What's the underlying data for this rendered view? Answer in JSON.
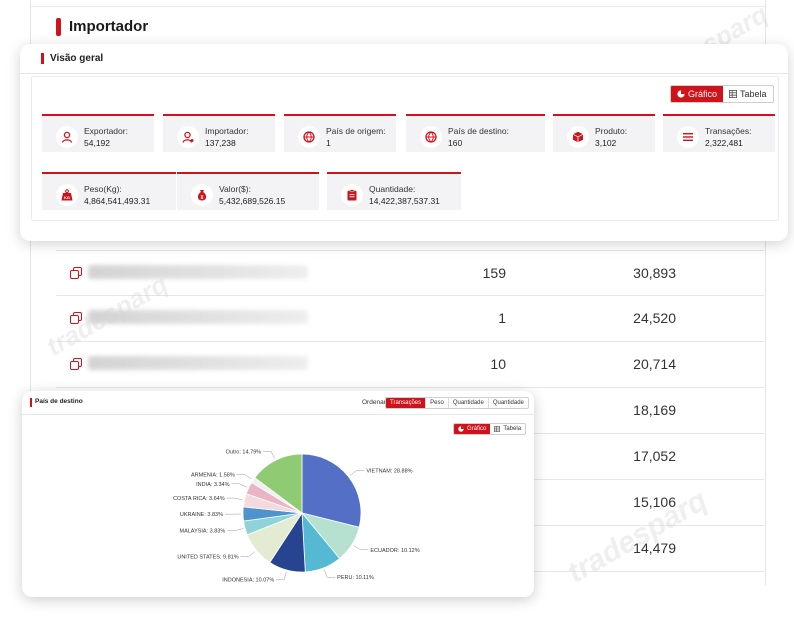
{
  "page": {
    "title": "Importador"
  },
  "overview": {
    "title": "Visão geral",
    "toggle": {
      "chart": "Gráfico",
      "table": "Tabela"
    },
    "stats": [
      {
        "icon": "exporter-icon",
        "label": "Exportador:",
        "value": "54,192"
      },
      {
        "icon": "importer-icon",
        "label": "Importador:",
        "value": "137,238"
      },
      {
        "icon": "origin-country-icon",
        "label": "País de origem:",
        "value": "1"
      },
      {
        "icon": "destination-country-icon",
        "label": "País de destino:",
        "value": "160"
      },
      {
        "icon": "product-box-icon",
        "label": "Produto:",
        "value": "3,102"
      },
      {
        "icon": "transactions-list-icon",
        "label": "Transações:",
        "value": "2,322,481"
      },
      {
        "icon": "weight-kg-icon",
        "label": "Peso(Kg):",
        "value": "4,864,541,493.31"
      },
      {
        "icon": "money-bag-icon",
        "label": "Valor($):",
        "value": "5,432,689,526.15"
      },
      {
        "icon": "clipboard-icon",
        "label": "Quantidade:",
        "value": "14,422,387,537.31"
      }
    ]
  },
  "background_table": {
    "rows": [
      {
        "count": "159",
        "value": "30,893"
      },
      {
        "count": "1",
        "value": "24,520"
      },
      {
        "count": "10",
        "value": "20,714"
      },
      {
        "count": "",
        "value": "18,169"
      },
      {
        "count": "",
        "value": "17,052"
      },
      {
        "count": "",
        "value": "15,106"
      },
      {
        "count": "",
        "value": "14,479"
      }
    ]
  },
  "destination_panel": {
    "title": "País de destino",
    "order_label": "Ordenar:",
    "sort_options": [
      "Transações",
      "Peso",
      "Quantidade",
      "Quantidade"
    ],
    "toggle": {
      "chart": "Gráfico",
      "table": "Tabela"
    }
  },
  "chart_data": {
    "type": "pie",
    "slices": [
      {
        "label": "VIETNAM: 28.88%",
        "value": 28.88,
        "color": "#5470c6"
      },
      {
        "label": "ECUADOR: 10.12%",
        "value": 10.12,
        "color": "#b6e0cf"
      },
      {
        "label": "PERU: 10.11%",
        "value": 10.11,
        "color": "#56b9d4"
      },
      {
        "label": "INDONESIA: 10.07%",
        "value": 10.07,
        "color": "#26448f"
      },
      {
        "label": "UNITED STATES: 9.81%",
        "value": 9.81,
        "color": "#e3ecd2"
      },
      {
        "label": "MALAYSIA: 3.83%",
        "value": 3.83,
        "color": "#8ed3da"
      },
      {
        "label": "UKRAINE: 3.83%",
        "value": 3.83,
        "color": "#4f93cc"
      },
      {
        "label": "COSTA RICA: 3.64%",
        "value": 3.64,
        "color": "#f4d9df"
      },
      {
        "label": "INDIA: 3.34%",
        "value": 3.34,
        "color": "#e9b5c4"
      },
      {
        "label": "ARMENIA: 1.58%",
        "value": 1.58,
        "color": "#f5eef1"
      },
      {
        "label": "Outro: 14.79%",
        "value": 14.79,
        "color": "#8fcb73"
      }
    ]
  }
}
